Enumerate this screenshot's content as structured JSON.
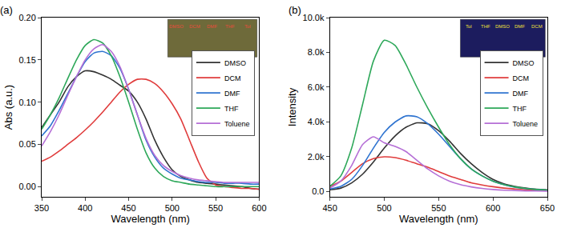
{
  "chart_data": [
    {
      "type": "line",
      "title": "(a)",
      "x_label": "Wavelength (nm)",
      "y_label": "Abs (a.u.)",
      "x": [
        350,
        360,
        370,
        380,
        390,
        400,
        410,
        420,
        430,
        440,
        450,
        460,
        470,
        480,
        490,
        500,
        510,
        520,
        530,
        540,
        550,
        560,
        570,
        580,
        590,
        600
      ],
      "series": [
        {
          "name": "DMSO",
          "color": "#333333",
          "values": [
            0.07,
            0.085,
            0.1,
            0.118,
            0.13,
            0.137,
            0.136,
            0.132,
            0.127,
            0.12,
            0.113,
            0.1,
            0.08,
            0.055,
            0.035,
            0.02,
            0.012,
            0.008,
            0.005,
            0.004,
            0.003,
            0.002,
            0.001,
            0.0,
            -0.002,
            -0.003
          ]
        },
        {
          "name": "DCM",
          "color": "#e03c3c",
          "values": [
            0.03,
            0.035,
            0.042,
            0.05,
            0.058,
            0.067,
            0.077,
            0.088,
            0.1,
            0.112,
            0.121,
            0.127,
            0.127,
            0.122,
            0.112,
            0.098,
            0.08,
            0.055,
            0.03,
            0.01,
            0.002,
            0.0,
            -0.001,
            -0.002,
            -0.002,
            -0.003
          ]
        },
        {
          "name": "DMF",
          "color": "#2f74d0",
          "values": [
            0.06,
            0.072,
            0.09,
            0.11,
            0.13,
            0.148,
            0.158,
            0.16,
            0.155,
            0.14,
            0.115,
            0.085,
            0.055,
            0.035,
            0.022,
            0.015,
            0.01,
            0.008,
            0.006,
            0.005,
            0.005,
            0.004,
            0.004,
            0.004,
            0.003,
            0.003
          ]
        },
        {
          "name": "THF",
          "color": "#2ea85a",
          "values": [
            0.068,
            0.085,
            0.105,
            0.128,
            0.15,
            0.167,
            0.174,
            0.17,
            0.155,
            0.13,
            0.1,
            0.068,
            0.04,
            0.022,
            0.012,
            0.007,
            0.005,
            0.003,
            0.002,
            0.001,
            0.0,
            0.0,
            0.0,
            0.0,
            0.0,
            0.0
          ]
        },
        {
          "name": "Toluene",
          "color": "#b56fd6",
          "values": [
            0.048,
            0.065,
            0.085,
            0.108,
            0.13,
            0.15,
            0.163,
            0.168,
            0.16,
            0.142,
            0.115,
            0.085,
            0.057,
            0.037,
            0.025,
            0.018,
            0.013,
            0.01,
            0.008,
            0.007,
            0.006,
            0.005,
            0.005,
            0.005,
            0.005,
            0.005
          ]
        }
      ],
      "xlim": [
        350,
        600
      ],
      "xticks": [
        350,
        400,
        450,
        500,
        550,
        600
      ],
      "ylim": [
        -0.012,
        0.2
      ],
      "yticks": [
        {
          "value": 0,
          "label": "0.00"
        },
        {
          "value": 0.05,
          "label": "0.05"
        },
        {
          "value": 0.1,
          "label": "0.10"
        },
        {
          "value": 0.15,
          "label": "0.15"
        },
        {
          "value": 0.2,
          "label": "0.20"
        }
      ],
      "annotations": [
        "DMSO",
        "DCM",
        "DMF",
        "THF",
        "Tol"
      ],
      "legend": "right",
      "grid": false
    },
    {
      "type": "line",
      "title": "(b)",
      "x_label": "Wavelength (nm)",
      "y_label": "Intensity",
      "x": [
        450,
        460,
        470,
        480,
        490,
        500,
        510,
        520,
        530,
        540,
        550,
        560,
        570,
        580,
        590,
        600,
        610,
        620,
        630,
        640,
        650
      ],
      "series": [
        {
          "name": "DMSO",
          "color": "#333333",
          "values": [
            100,
            200,
            500,
            1000,
            1700,
            2500,
            3200,
            3700,
            3950,
            3900,
            3500,
            2900,
            2200,
            1600,
            1100,
            700,
            450,
            300,
            200,
            130,
            100
          ]
        },
        {
          "name": "DCM",
          "color": "#e03c3c",
          "values": [
            300,
            600,
            1100,
            1600,
            1900,
            2000,
            1950,
            1800,
            1600,
            1400,
            1150,
            900,
            700,
            500,
            380,
            280,
            200,
            150,
            100,
            80,
            60
          ]
        },
        {
          "name": "DMF",
          "color": "#2f74d0",
          "values": [
            150,
            300,
            700,
            1500,
            2500,
            3400,
            4000,
            4350,
            4300,
            3900,
            3300,
            2600,
            1900,
            1300,
            900,
            600,
            400,
            250,
            170,
            120,
            80
          ]
        },
        {
          "name": "THF",
          "color": "#2ea85a",
          "values": [
            300,
            900,
            2500,
            5000,
            7500,
            8700,
            8400,
            7300,
            6000,
            4800,
            3700,
            2700,
            1900,
            1300,
            900,
            600,
            400,
            270,
            180,
            120,
            80
          ]
        },
        {
          "name": "Toluene",
          "color": "#b56fd6",
          "values": [
            200,
            600,
            1500,
            2700,
            3150,
            2800,
            2600,
            2300,
            1800,
            1300,
            900,
            600,
            400,
            270,
            180,
            120,
            80,
            60,
            40,
            30,
            20
          ]
        }
      ],
      "xlim": [
        450,
        650
      ],
      "xticks": [
        450,
        500,
        550,
        600,
        650
      ],
      "ylim": [
        -300,
        10000
      ],
      "yticks": [
        {
          "value": 0,
          "label": "0.0"
        },
        {
          "value": 2000,
          "label": "2.0k"
        },
        {
          "value": 4000,
          "label": "4.0k"
        },
        {
          "value": 6000,
          "label": "6.0k"
        },
        {
          "value": 8000,
          "label": "8.0k"
        },
        {
          "value": 10000,
          "label": "10.0k"
        }
      ],
      "annotations": [
        "Tol",
        "THF",
        "DMSO",
        "DMF",
        "DCM"
      ],
      "legend": "right",
      "grid": false
    }
  ]
}
